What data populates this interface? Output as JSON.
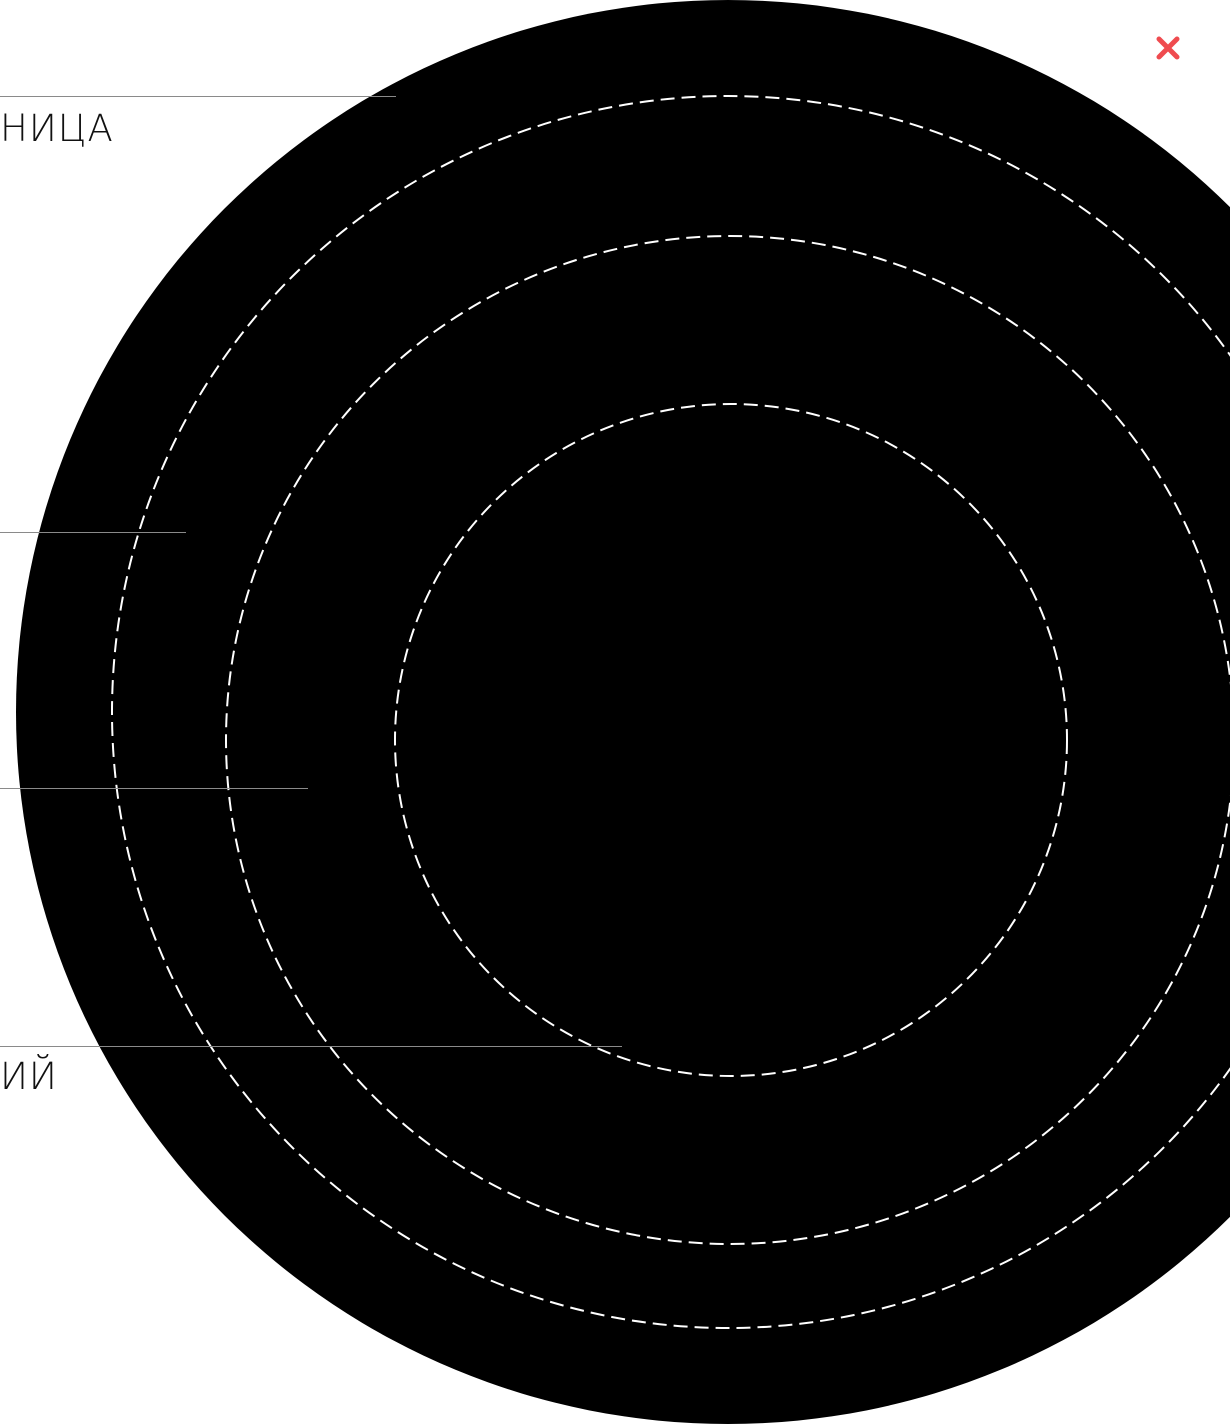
{
  "colors": {
    "disc": "#000000",
    "ring_stroke": "#ffffff",
    "callout_line": "#8a8a8a",
    "close_icon": "#ef4b4f",
    "label_text": "#111111"
  },
  "close_button": {
    "icon": "close-icon"
  },
  "callouts": [
    {
      "label": "НИЦА"
    },
    {
      "label": ""
    },
    {
      "label": ""
    },
    {
      "label": "ИЙ"
    }
  ]
}
